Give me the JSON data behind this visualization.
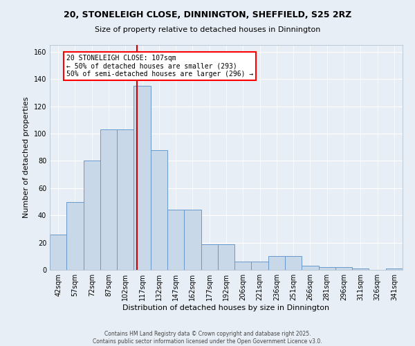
{
  "title1": "20, STONELEIGH CLOSE, DINNINGTON, SHEFFIELD, S25 2RZ",
  "title2": "Size of property relative to detached houses in Dinnington",
  "xlabel": "Distribution of detached houses by size in Dinnington",
  "ylabel": "Number of detached properties",
  "categories": [
    "42sqm",
    "57sqm",
    "72sqm",
    "87sqm",
    "102sqm",
    "117sqm",
    "132sqm",
    "147sqm",
    "162sqm",
    "177sqm",
    "192sqm",
    "206sqm",
    "221sqm",
    "236sqm",
    "251sqm",
    "266sqm",
    "281sqm",
    "296sqm",
    "311sqm",
    "326sqm",
    "341sqm"
  ],
  "values": [
    26,
    50,
    80,
    103,
    103,
    135,
    88,
    44,
    44,
    19,
    19,
    6,
    6,
    10,
    10,
    3,
    2,
    2,
    1,
    0,
    1
  ],
  "bar_color": "#c8d8e8",
  "bar_edge_color": "#6699cc",
  "red_line_x": 4.67,
  "annotation_text": "20 STONELEIGH CLOSE: 107sqm\n← 50% of detached houses are smaller (293)\n50% of semi-detached houses are larger (296) →",
  "annotation_box_color": "white",
  "annotation_box_edge_color": "red",
  "red_line_color": "#cc0000",
  "ylim": [
    0,
    165
  ],
  "yticks": [
    0,
    20,
    40,
    60,
    80,
    100,
    120,
    140,
    160
  ],
  "footer1": "Contains HM Land Registry data © Crown copyright and database right 2025.",
  "footer2": "Contains public sector information licensed under the Open Government Licence v3.0.",
  "bg_color": "#e8eef5",
  "grid_color": "white",
  "title1_fontsize": 9,
  "title2_fontsize": 8,
  "ylabel_fontsize": 8,
  "xlabel_fontsize": 8,
  "tick_fontsize": 7,
  "annotation_fontsize": 7,
  "footer_fontsize": 5.5
}
